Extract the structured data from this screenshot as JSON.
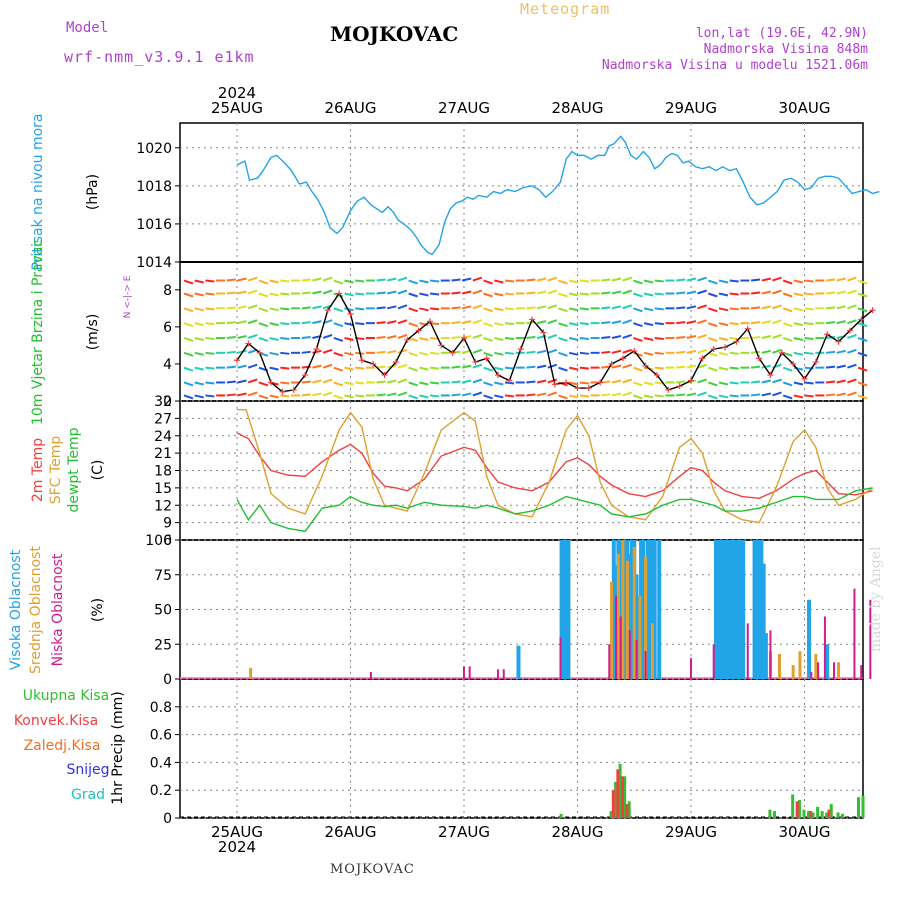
{
  "header": {
    "model_label": "Model",
    "model_name": "wrf-nmm_v3.9.1 e1km",
    "title": "MOJKOVAC",
    "meteogram": "Meteogram",
    "lonlat": "lon,lat (19.6E, 42.9N)",
    "elevation": "Nadmorska Visina 848m",
    "model_elevation": "Nadmorska Visina u modelu 1521.06m"
  },
  "footer": {
    "station": "MOJKOVAC",
    "credit": "made by Angel"
  },
  "colors": {
    "pressure": "#22a4e8",
    "wind_label": "#22c030",
    "temp2m": "#f04040",
    "sfc": "#e0a030",
    "dew": "#22c030",
    "high": "#22a4e8",
    "mid": "#e0a030",
    "low": "#d01c8c",
    "total": "#30c030",
    "conv": "#f04040",
    "frozen": "#f07020",
    "snow": "#3030e0",
    "grad": "#20c0c0"
  },
  "chart_data": [
    {
      "type": "line",
      "title": "",
      "ylabel": "Pritisak na nivou mora",
      "unit": "(hPa)",
      "x_days": [
        "25AUG",
        "26AUG",
        "27AUG",
        "28AUG",
        "29AUG",
        "30AUG"
      ],
      "year": "2024",
      "ylim": [
        1014,
        1021.3
      ],
      "yticks": [
        "1014",
        "1016",
        "1018",
        "1020"
      ],
      "series": [
        {
          "x": [
            0,
            0.07,
            0.11,
            0.18,
            0.23,
            0.3,
            0.35,
            0.42,
            0.48,
            0.52,
            0.55,
            0.61,
            0.66,
            0.71,
            0.77,
            0.82,
            0.88,
            0.93,
            1.0,
            1.06,
            1.12,
            1.18,
            1.23,
            1.28,
            1.33,
            1.38,
            1.42,
            1.47,
            1.53,
            1.58,
            1.62,
            1.68,
            1.72,
            1.78,
            1.83,
            1.88,
            1.93,
            1.98,
            2.03,
            2.08,
            2.13,
            2.2,
            2.26,
            2.32,
            2.38,
            2.45,
            2.52,
            2.6,
            2.66,
            2.72,
            2.78,
            2.85,
            2.9,
            2.95,
            3.0,
            3.06,
            3.12,
            3.18,
            3.24,
            3.28,
            3.32,
            3.38,
            3.42,
            3.47,
            3.52,
            3.58,
            3.63,
            3.68,
            3.73,
            3.78,
            3.83,
            3.88,
            3.93,
            3.98,
            4.04,
            4.1,
            4.16,
            4.22,
            4.28,
            4.34,
            4.4,
            4.46,
            4.52,
            4.58,
            4.64,
            4.7,
            4.76,
            4.82,
            4.88,
            4.94,
            5.0,
            5.06,
            5.12,
            5.18,
            5.24,
            5.3,
            5.36,
            5.42,
            5.48,
            5.54,
            5.6,
            5.66
          ],
          "values": [
            1019.1,
            1019.3,
            1018.3,
            1018.4,
            1018.8,
            1019.5,
            1019.6,
            1019.2,
            1018.8,
            1018.4,
            1018.1,
            1018.2,
            1017.7,
            1017.3,
            1016.6,
            1015.8,
            1015.5,
            1015.8,
            1016.7,
            1017.2,
            1017.4,
            1017.0,
            1016.8,
            1016.6,
            1016.9,
            1016.6,
            1016.2,
            1016.0,
            1015.7,
            1015.3,
            1014.9,
            1014.5,
            1014.4,
            1014.9,
            1016.1,
            1016.8,
            1017.1,
            1017.2,
            1017.4,
            1017.3,
            1017.5,
            1017.4,
            1017.7,
            1017.6,
            1017.8,
            1017.7,
            1017.9,
            1018.0,
            1017.8,
            1017.4,
            1017.7,
            1018.2,
            1019.4,
            1019.8,
            1019.6,
            1019.6,
            1019.4,
            1019.6,
            1019.6,
            1020.1,
            1020.2,
            1020.6,
            1020.3,
            1019.6,
            1019.4,
            1019.8,
            1019.5,
            1018.9,
            1019.1,
            1019.5,
            1019.7,
            1019.6,
            1019.2,
            1019.3,
            1019.0,
            1018.9,
            1019.0,
            1018.8,
            1019.0,
            1018.8,
            1018.9,
            1018.2,
            1017.4,
            1017.0,
            1017.1,
            1017.4,
            1017.7,
            1018.3,
            1018.4,
            1018.2,
            1017.8,
            1017.9,
            1018.4,
            1018.5,
            1018.5,
            1018.4,
            1018.0,
            1017.6,
            1017.7,
            1017.8,
            1017.6,
            1017.7
          ]
        }
      ]
    },
    {
      "type": "line",
      "ylabel": "10m Vjetar Brzina i Pravac",
      "unit": "(m/s)",
      "compass": "N <-|-> E",
      "ylim": [
        2,
        9.5
      ],
      "yticks": [
        "2",
        "4",
        "6",
        "8"
      ],
      "series": [
        {
          "name": "speed",
          "x": [
            0,
            0.1,
            0.2,
            0.3,
            0.4,
            0.5,
            0.6,
            0.7,
            0.8,
            0.9,
            1.0,
            1.1,
            1.2,
            1.3,
            1.4,
            1.5,
            1.6,
            1.7,
            1.8,
            1.9,
            2.0,
            2.1,
            2.2,
            2.3,
            2.4,
            2.5,
            2.6,
            2.7,
            2.8,
            2.9,
            3.0,
            3.1,
            3.2,
            3.3,
            3.4,
            3.5,
            3.6,
            3.7,
            3.8,
            3.9,
            4.0,
            4.1,
            4.2,
            4.3,
            4.4,
            4.5,
            4.6,
            4.7,
            4.8,
            4.9,
            5.0,
            5.1,
            5.2,
            5.3,
            5.4,
            5.5,
            5.6
          ],
          "values": [
            4.2,
            5.1,
            4.6,
            3.0,
            2.5,
            2.6,
            3.4,
            4.8,
            6.9,
            7.8,
            6.7,
            4.2,
            4.0,
            3.4,
            4.1,
            5.3,
            5.8,
            6.3,
            5.0,
            4.6,
            5.4,
            4.1,
            4.3,
            3.4,
            3.1,
            4.8,
            6.4,
            5.7,
            2.9,
            3.0,
            2.7,
            2.7,
            3.0,
            4.0,
            4.3,
            4.7,
            3.9,
            3.4,
            2.6,
            2.8,
            3.1,
            4.3,
            4.8,
            4.9,
            5.2,
            5.9,
            4.3,
            3.4,
            4.6,
            4.0,
            3.2,
            4.1,
            5.6,
            5.2,
            5.8,
            6.4,
            6.9
          ]
        }
      ]
    },
    {
      "type": "line",
      "ylabel": "2m Temp / SFC Temp / dewpt Temp",
      "unit": "(C)",
      "ylim": [
        6,
        30
      ],
      "yticks": [
        "6",
        "9",
        "12",
        "15",
        "18",
        "21",
        "24",
        "27",
        "30"
      ],
      "series": [
        {
          "name": "2m Temp",
          "x": [
            0,
            0.1,
            0.2,
            0.3,
            0.45,
            0.6,
            0.75,
            0.9,
            1.0,
            1.1,
            1.2,
            1.3,
            1.4,
            1.5,
            1.65,
            1.8,
            2.0,
            2.1,
            2.2,
            2.3,
            2.45,
            2.6,
            2.75,
            2.9,
            3.0,
            3.1,
            3.2,
            3.3,
            3.45,
            3.6,
            3.75,
            3.9,
            4.0,
            4.1,
            4.2,
            4.3,
            4.45,
            4.6,
            4.75,
            4.9,
            5.0,
            5.1,
            5.2,
            5.3,
            5.45,
            5.6
          ],
          "values": [
            24.5,
            23.5,
            20.5,
            18.0,
            17.2,
            17.0,
            19.5,
            21.5,
            22.5,
            21.0,
            17.5,
            15.3,
            15.0,
            14.5,
            16.5,
            20.5,
            22.0,
            21.5,
            18.5,
            16.0,
            15.0,
            14.5,
            16.0,
            19.5,
            20.2,
            19.0,
            17.0,
            15.5,
            14.0,
            13.5,
            14.5,
            17.0,
            18.5,
            18.0,
            16.0,
            14.5,
            13.5,
            13.2,
            14.5,
            16.5,
            17.5,
            18.0,
            16.0,
            14.0,
            13.8,
            14.5
          ]
        },
        {
          "name": "SFC Temp",
          "x": [
            0,
            0.08,
            0.2,
            0.3,
            0.45,
            0.6,
            0.75,
            0.9,
            1.0,
            1.1,
            1.2,
            1.3,
            1.4,
            1.5,
            1.65,
            1.8,
            2.0,
            2.1,
            2.2,
            2.3,
            2.45,
            2.6,
            2.75,
            2.9,
            3.0,
            3.1,
            3.2,
            3.3,
            3.45,
            3.6,
            3.75,
            3.9,
            4.0,
            4.1,
            4.2,
            4.3,
            4.45,
            4.6,
            4.75,
            4.9,
            5.0,
            5.1,
            5.2,
            5.3,
            5.45,
            5.6
          ],
          "values": [
            28.5,
            28.5,
            21.0,
            14.0,
            11.5,
            10.5,
            17.0,
            25.0,
            28.0,
            25.5,
            16.5,
            12.0,
            11.5,
            11.0,
            17.5,
            25.0,
            28.0,
            26.5,
            17.0,
            12.0,
            10.5,
            10.0,
            16.0,
            25.0,
            27.5,
            24.0,
            16.0,
            12.0,
            10.0,
            9.5,
            13.5,
            22.0,
            23.5,
            21.0,
            14.5,
            11.0,
            9.5,
            9.0,
            15.0,
            23.0,
            25.0,
            22.0,
            15.0,
            12.0,
            13.0,
            15.0
          ]
        },
        {
          "name": "dewpt Temp",
          "x": [
            0,
            0.1,
            0.2,
            0.3,
            0.45,
            0.6,
            0.75,
            0.9,
            1.0,
            1.1,
            1.2,
            1.3,
            1.4,
            1.5,
            1.65,
            1.8,
            2.0,
            2.1,
            2.2,
            2.3,
            2.45,
            2.6,
            2.75,
            2.9,
            3.0,
            3.1,
            3.2,
            3.3,
            3.45,
            3.6,
            3.75,
            3.9,
            4.0,
            4.1,
            4.2,
            4.3,
            4.45,
            4.6,
            4.75,
            4.9,
            5.0,
            5.1,
            5.2,
            5.3,
            5.45,
            5.6
          ],
          "values": [
            13.0,
            9.5,
            12.0,
            9.0,
            8.0,
            7.5,
            11.5,
            12.0,
            13.5,
            12.5,
            12.0,
            11.8,
            12.0,
            11.5,
            12.5,
            12.0,
            11.8,
            11.5,
            12.0,
            11.5,
            10.5,
            11.0,
            12.0,
            13.5,
            13.0,
            12.5,
            12.0,
            10.5,
            10.0,
            10.5,
            12.0,
            13.0,
            13.0,
            12.5,
            12.0,
            11.0,
            11.0,
            11.5,
            12.5,
            13.5,
            13.5,
            13.0,
            13.0,
            13.0,
            14.5,
            15.0
          ]
        }
      ]
    },
    {
      "type": "bar",
      "ylabel": "Visoka Oblacnost / Srednja Oblacnost / Niska Oblacnost",
      "unit": "(%)",
      "ylim": [
        0,
        100
      ],
      "yticks": [
        "0",
        "25",
        "50",
        "75",
        "100"
      ],
      "series": [
        {
          "name": "Visoka Oblacnost",
          "x": [
            2.48,
            2.86,
            2.88,
            2.9,
            2.92,
            3.32,
            3.34,
            3.36,
            3.38,
            3.4,
            3.42,
            3.44,
            3.46,
            3.48,
            3.5,
            3.52,
            3.56,
            3.58,
            3.62,
            3.64,
            3.66,
            3.68,
            3.72,
            4.22,
            4.24,
            4.26,
            4.28,
            4.3,
            4.32,
            4.34,
            4.36,
            4.38,
            4.4,
            4.42,
            4.44,
            4.46,
            4.56,
            4.58,
            4.6,
            4.62,
            4.64,
            4.66,
            5.04,
            5.2
          ],
          "values": [
            24,
            100,
            100,
            100,
            100,
            100,
            82,
            100,
            100,
            95,
            100,
            100,
            90,
            100,
            100,
            75,
            100,
            100,
            100,
            100,
            100,
            100,
            100,
            100,
            100,
            100,
            100,
            100,
            100,
            100,
            100,
            100,
            100,
            100,
            100,
            100,
            100,
            100,
            100,
            100,
            83,
            33,
            57,
            25
          ]
        },
        {
          "name": "Srednja Oblacnost",
          "x": [
            0.12,
            3.3,
            3.36,
            3.4,
            3.44,
            3.5,
            3.55,
            3.6,
            3.66,
            4.7,
            4.78,
            4.9,
            4.96,
            5.1,
            5.3
          ],
          "values": [
            8,
            70,
            90,
            100,
            85,
            95,
            60,
            88,
            40,
            20,
            18,
            10,
            20,
            18,
            12
          ]
        },
        {
          "name": "Niska Oblacnost",
          "x": [
            1.18,
            2.0,
            2.05,
            2.3,
            2.35,
            2.85,
            3.28,
            3.34,
            3.38,
            3.46,
            3.52,
            3.6,
            4.0,
            4.2,
            4.5,
            4.7,
            5.06,
            5.12,
            5.18,
            5.26,
            5.44,
            5.5,
            5.58
          ],
          "values": [
            5,
            9,
            9,
            7,
            7,
            30,
            25,
            60,
            45,
            35,
            28,
            20,
            15,
            25,
            40,
            35,
            5,
            12,
            45,
            12,
            65,
            10,
            57
          ]
        }
      ]
    },
    {
      "type": "bar",
      "ylabel": "1hr Precip (mm)",
      "legend": [
        "Ukupna Kisa",
        "Konvek.Kisa",
        "Zaledj.Kisa",
        "Snijeg",
        "Grad"
      ],
      "ylim": [
        0,
        1.0
      ],
      "yticks": [
        "0",
        "0.2",
        "0.4",
        "0.6",
        "0.8"
      ],
      "series": [
        {
          "name": "Ukupna Kisa",
          "x": [
            2.86,
            3.3,
            3.34,
            3.38,
            3.42,
            3.46,
            4.7,
            4.74,
            4.9,
            4.96,
            5.0,
            5.04,
            5.08,
            5.12,
            5.16,
            5.2,
            5.24,
            5.3,
            5.34,
            5.48,
            5.52
          ],
          "values": [
            0.03,
            0.05,
            0.26,
            0.39,
            0.3,
            0.12,
            0.06,
            0.05,
            0.17,
            0.13,
            0.06,
            0.05,
            0.04,
            0.08,
            0.05,
            0.04,
            0.1,
            0.04,
            0.03,
            0.15,
            0.16
          ]
        },
        {
          "name": "Konvek.Kisa",
          "x": [
            3.32,
            3.36,
            3.4,
            3.44,
            4.94,
            5.06,
            5.22
          ],
          "values": [
            0.2,
            0.35,
            0.3,
            0.1,
            0.12,
            0.05,
            0.06
          ]
        }
      ]
    }
  ]
}
